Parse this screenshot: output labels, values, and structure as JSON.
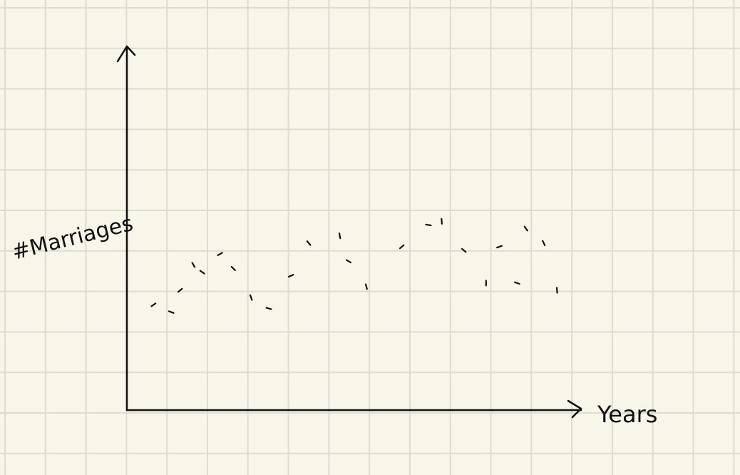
{
  "chart_data": {
    "type": "scatter",
    "title": "",
    "xlabel": "Years",
    "ylabel": "#Marriages",
    "grid": true,
    "ticks_shown": false,
    "xlim": [
      0,
      100
    ],
    "ylim": [
      0,
      100
    ],
    "x": [
      6,
      10,
      12,
      15,
      17,
      21,
      24,
      28,
      32,
      37,
      41,
      48,
      50,
      54,
      62,
      68,
      71,
      76,
      81,
      84,
      88,
      90,
      94,
      97
    ],
    "y": [
      29,
      27,
      33,
      40,
      38,
      43,
      39,
      31,
      28,
      37,
      46,
      48,
      41,
      34,
      45,
      51,
      52,
      44,
      35,
      45,
      35,
      50,
      46,
      33
    ]
  }
}
